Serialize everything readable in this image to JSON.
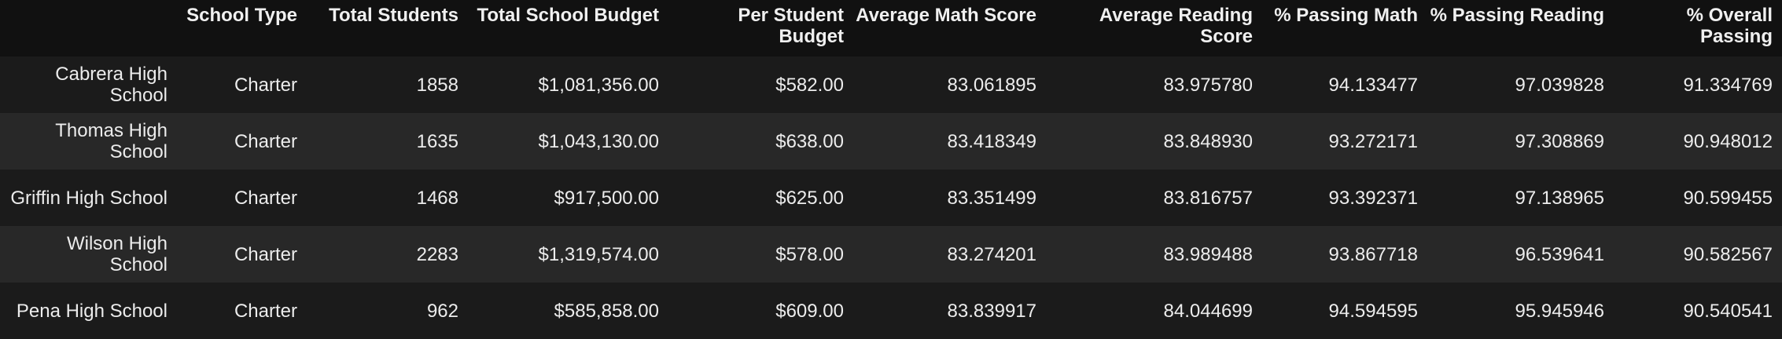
{
  "table": {
    "columns": [
      "",
      "School Type",
      "Total Students",
      "Total School Budget",
      "Per Student Budget",
      "Average Math Score",
      "Average Reading Score",
      "% Passing Math",
      "% Passing Reading",
      "% Overall Passing"
    ],
    "rows": [
      {
        "school": "Cabrera High School",
        "cells": [
          "Charter",
          "1858",
          "$1,081,356.00",
          "$582.00",
          "83.061895",
          "83.975780",
          "94.133477",
          "97.039828",
          "91.334769"
        ]
      },
      {
        "school": "Thomas High School",
        "cells": [
          "Charter",
          "1635",
          "$1,043,130.00",
          "$638.00",
          "83.418349",
          "83.848930",
          "93.272171",
          "97.308869",
          "90.948012"
        ]
      },
      {
        "school": "Griffin High School",
        "cells": [
          "Charter",
          "1468",
          "$917,500.00",
          "$625.00",
          "83.351499",
          "83.816757",
          "93.392371",
          "97.138965",
          "90.599455"
        ]
      },
      {
        "school": "Wilson High School",
        "cells": [
          "Charter",
          "2283",
          "$1,319,574.00",
          "$578.00",
          "83.274201",
          "83.989488",
          "93.867718",
          "96.539641",
          "90.582567"
        ]
      },
      {
        "school": "Pena High School",
        "cells": [
          "Charter",
          "962",
          "$585,858.00",
          "$609.00",
          "83.839917",
          "84.044699",
          "94.594595",
          "95.945946",
          "90.540541"
        ]
      }
    ]
  }
}
